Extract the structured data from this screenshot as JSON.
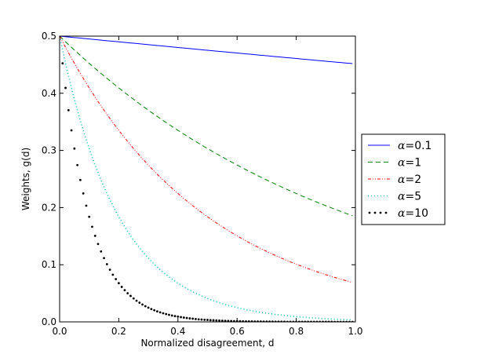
{
  "chart_data": {
    "type": "line",
    "xlabel": "Normalized disagreement, d",
    "ylabel": "Weights, g(d)",
    "xlim": [
      0,
      1
    ],
    "ylim": [
      0,
      0.5
    ],
    "x_ticks": [
      "0.0",
      "0.2",
      "0.4",
      "0.6",
      "0.8",
      "1.0"
    ],
    "y_ticks": [
      "0.0",
      "0.1",
      "0.2",
      "0.3",
      "0.4",
      "0.5"
    ],
    "grid": false,
    "legend_position": "right-outside",
    "x": [
      0,
      0.01,
      0.02,
      0.03,
      0.04,
      0.05,
      0.06,
      0.07,
      0.08,
      0.09,
      0.1,
      0.11,
      0.12,
      0.13,
      0.14,
      0.15,
      0.16,
      0.17,
      0.18,
      0.19,
      0.2,
      0.21,
      0.22,
      0.23,
      0.24,
      0.25,
      0.26,
      0.27,
      0.28,
      0.29,
      0.3,
      0.31,
      0.32,
      0.33,
      0.34,
      0.35,
      0.36,
      0.37,
      0.38,
      0.39,
      0.4,
      0.41,
      0.42,
      0.43,
      0.44,
      0.45,
      0.46,
      0.47,
      0.48,
      0.49,
      0.5,
      0.51,
      0.52,
      0.53,
      0.54,
      0.55,
      0.56,
      0.57,
      0.58,
      0.59,
      0.6,
      0.61,
      0.62,
      0.63,
      0.64,
      0.65,
      0.66,
      0.67,
      0.68,
      0.69,
      0.7,
      0.71,
      0.72,
      0.73,
      0.74,
      0.75,
      0.76,
      0.77,
      0.78,
      0.79,
      0.8,
      0.81,
      0.82,
      0.83,
      0.84,
      0.85,
      0.86,
      0.87,
      0.88,
      0.89,
      0.9,
      0.91,
      0.92,
      0.93,
      0.94,
      0.95,
      0.96,
      0.97,
      0.98,
      0.99
    ],
    "series": [
      {
        "legend_prefix": "α",
        "legend_eq": "=",
        "legend_value": "0.1",
        "color": "#0000ff",
        "style": "solid",
        "values": [
          0.5,
          0.4995,
          0.499,
          0.4985,
          0.498,
          0.4975,
          0.497,
          0.4965,
          0.496,
          0.4955,
          0.495,
          0.4945,
          0.494,
          0.4935,
          0.493,
          0.4925,
          0.492,
          0.4915,
          0.491,
          0.4905,
          0.49,
          0.4895,
          0.489,
          0.4885,
          0.488,
          0.4876,
          0.4871,
          0.4866,
          0.4861,
          0.4856,
          0.4851,
          0.4846,
          0.4841,
          0.4836,
          0.4831,
          0.4826,
          0.4821,
          0.4816,
          0.4811,
          0.4806,
          0.4801,
          0.4796,
          0.4792,
          0.4787,
          0.4782,
          0.4777,
          0.4772,
          0.4767,
          0.4762,
          0.4757,
          0.4752,
          0.4748,
          0.4743,
          0.4738,
          0.4733,
          0.4728,
          0.4723,
          0.4718,
          0.4714,
          0.4709,
          0.4704,
          0.4699,
          0.4694,
          0.4689,
          0.4685,
          0.468,
          0.4675,
          0.467,
          0.4665,
          0.4661,
          0.4656,
          0.4651,
          0.4646,
          0.4641,
          0.4637,
          0.4632,
          0.4627,
          0.4622,
          0.4618,
          0.4613,
          0.4608,
          0.4603,
          0.4599,
          0.4594,
          0.4589,
          0.4584,
          0.458,
          0.4575,
          0.457,
          0.4566,
          0.4561,
          0.4556,
          0.4552,
          0.4547,
          0.4542,
          0.4538,
          0.4533,
          0.4528,
          0.4524,
          0.4519
        ]
      },
      {
        "legend_prefix": "α",
        "legend_eq": "=",
        "legend_value": "1",
        "color": "#008000",
        "style": "dashed",
        "values": [
          0.5,
          0.495,
          0.4901,
          0.4852,
          0.4804,
          0.4756,
          0.4709,
          0.4662,
          0.4616,
          0.457,
          0.4524,
          0.4479,
          0.4435,
          0.439,
          0.4347,
          0.4304,
          0.4261,
          0.4218,
          0.4176,
          0.4135,
          0.4094,
          0.4053,
          0.4013,
          0.3973,
          0.3933,
          0.3894,
          0.3855,
          0.3817,
          0.3779,
          0.3741,
          0.3704,
          0.3667,
          0.3631,
          0.3595,
          0.3559,
          0.3523,
          0.3488,
          0.3453,
          0.3419,
          0.3385,
          0.3352,
          0.3318,
          0.3285,
          0.3253,
          0.322,
          0.3188,
          0.3157,
          0.3125,
          0.3094,
          0.3063,
          0.3033,
          0.3003,
          0.2973,
          0.2943,
          0.2914,
          0.2885,
          0.2856,
          0.2828,
          0.28,
          0.2772,
          0.2744,
          0.2717,
          0.269,
          0.2663,
          0.2636,
          0.261,
          0.2584,
          0.2558,
          0.2533,
          0.2508,
          0.2483,
          0.2458,
          0.2434,
          0.241,
          0.2386,
          0.2362,
          0.2338,
          0.2315,
          0.2292,
          0.2269,
          0.2247,
          0.2224,
          0.2202,
          0.218,
          0.2158,
          0.2137,
          0.2116,
          0.2095,
          0.2074,
          0.2053,
          0.2033,
          0.2013,
          0.1993,
          0.1973,
          0.1953,
          0.1934,
          0.1914,
          0.1895,
          0.1876,
          0.1858
        ]
      },
      {
        "legend_prefix": "α",
        "legend_eq": "=",
        "legend_value": "2",
        "color": "#ff0000",
        "style": "dashdot",
        "values": [
          0.5,
          0.4901,
          0.4804,
          0.4709,
          0.4616,
          0.4524,
          0.4435,
          0.4347,
          0.4261,
          0.4176,
          0.4094,
          0.4013,
          0.3933,
          0.3855,
          0.3779,
          0.3704,
          0.3631,
          0.3559,
          0.3488,
          0.3419,
          0.3352,
          0.3285,
          0.322,
          0.3157,
          0.3094,
          0.3033,
          0.2973,
          0.2914,
          0.2856,
          0.28,
          0.2744,
          0.269,
          0.2636,
          0.2584,
          0.2533,
          0.2483,
          0.2434,
          0.2386,
          0.2338,
          0.2292,
          0.2247,
          0.2202,
          0.2158,
          0.2116,
          0.2074,
          0.2033,
          0.1993,
          0.1953,
          0.1914,
          0.1876,
          0.1839,
          0.1803,
          0.1767,
          0.1732,
          0.1698,
          0.1664,
          0.1631,
          0.1599,
          0.1567,
          0.1536,
          0.1506,
          0.1476,
          0.1447,
          0.1418,
          0.139,
          0.1362,
          0.1335,
          0.1309,
          0.1283,
          0.1258,
          0.1233,
          0.1208,
          0.1184,
          0.1161,
          0.1138,
          0.1115,
          0.1093,
          0.1072,
          0.105,
          0.103,
          0.1009,
          0.0989,
          0.097,
          0.0951,
          0.0932,
          0.0913,
          0.0895,
          0.0877,
          0.086,
          0.0843,
          0.0826,
          0.081,
          0.0794,
          0.0778,
          0.0763,
          0.0748,
          0.0733,
          0.0718,
          0.0704,
          0.069
        ]
      },
      {
        "legend_prefix": "α",
        "legend_eq": "=",
        "legend_value": "5",
        "color": "#00bfbf",
        "style": "dotted",
        "values": [
          0.5,
          0.4756,
          0.4524,
          0.4304,
          0.4094,
          0.3894,
          0.3704,
          0.3523,
          0.3352,
          0.3188,
          0.3033,
          0.2885,
          0.2744,
          0.261,
          0.2483,
          0.2362,
          0.2247,
          0.2137,
          0.2033,
          0.1934,
          0.1839,
          0.175,
          0.1664,
          0.1583,
          0.1506,
          0.1433,
          0.1363,
          0.1296,
          0.1233,
          0.1173,
          0.1116,
          0.1061,
          0.1009,
          0.096,
          0.0913,
          0.0869,
          0.0826,
          0.0786,
          0.0748,
          0.0711,
          0.0677,
          0.0644,
          0.0612,
          0.0583,
          0.0554,
          0.0527,
          0.0501,
          0.0477,
          0.0454,
          0.0432,
          0.041,
          0.039,
          0.0371,
          0.0353,
          0.0336,
          0.032,
          0.0304,
          0.0289,
          0.0275,
          0.0262,
          0.0249,
          0.0237,
          0.0225,
          0.0214,
          0.0204,
          0.0194,
          0.0184,
          0.0175,
          0.0167,
          0.0159,
          0.0151,
          0.0144,
          0.0137,
          0.013,
          0.0124,
          0.0118,
          0.0112,
          0.0106,
          0.0101,
          0.0096,
          0.0092,
          0.0087,
          0.0083,
          0.0079,
          0.0075,
          0.0071,
          0.0068,
          0.0065,
          0.0061,
          0.0058,
          0.0056,
          0.0053,
          0.005,
          0.0048,
          0.0046,
          0.0043,
          0.0041,
          0.0039,
          0.0037,
          0.0036
        ]
      },
      {
        "legend_prefix": "α",
        "legend_eq": "=",
        "legend_value": "10",
        "color": "#000000",
        "style": "points",
        "values": [
          0.5,
          0.4524,
          0.4094,
          0.3704,
          0.3352,
          0.3033,
          0.2744,
          0.2483,
          0.2247,
          0.2033,
          0.1839,
          0.1664,
          0.1506,
          0.1363,
          0.1233,
          0.1116,
          0.1009,
          0.0913,
          0.0826,
          0.0748,
          0.0677,
          0.0612,
          0.0554,
          0.0501,
          0.0454,
          0.041,
          0.0371,
          0.0336,
          0.0304,
          0.0275,
          0.0249,
          0.0225,
          0.0204,
          0.0184,
          0.0167,
          0.0151,
          0.0137,
          0.0124,
          0.0112,
          0.0101,
          0.0092,
          0.0083,
          0.0075,
          0.0068,
          0.0061,
          0.0056,
          0.005,
          0.0045,
          0.0041,
          0.0037,
          0.0034,
          0.003,
          0.0028,
          0.0025,
          0.0023,
          0.002,
          0.0018,
          0.0017,
          0.0015,
          0.0014,
          0.0012,
          0.0011,
          0.001,
          0.0009,
          0.0008,
          0.0008,
          0.0007,
          0.0006,
          0.0006,
          0.0005,
          0.0005,
          0.0004,
          0.0004,
          0.0003,
          0.0003,
          0.0003,
          0.0003,
          0.0002,
          0.0002,
          0.0002,
          0.0002,
          0.0002,
          0.0001,
          0.0001,
          0.0001,
          0.0001,
          0.0001,
          0.0001,
          0.0001,
          0.0001,
          0.0001,
          0.0001,
          0.0001,
          0,
          0,
          0,
          0,
          0,
          0,
          0
        ]
      }
    ]
  }
}
